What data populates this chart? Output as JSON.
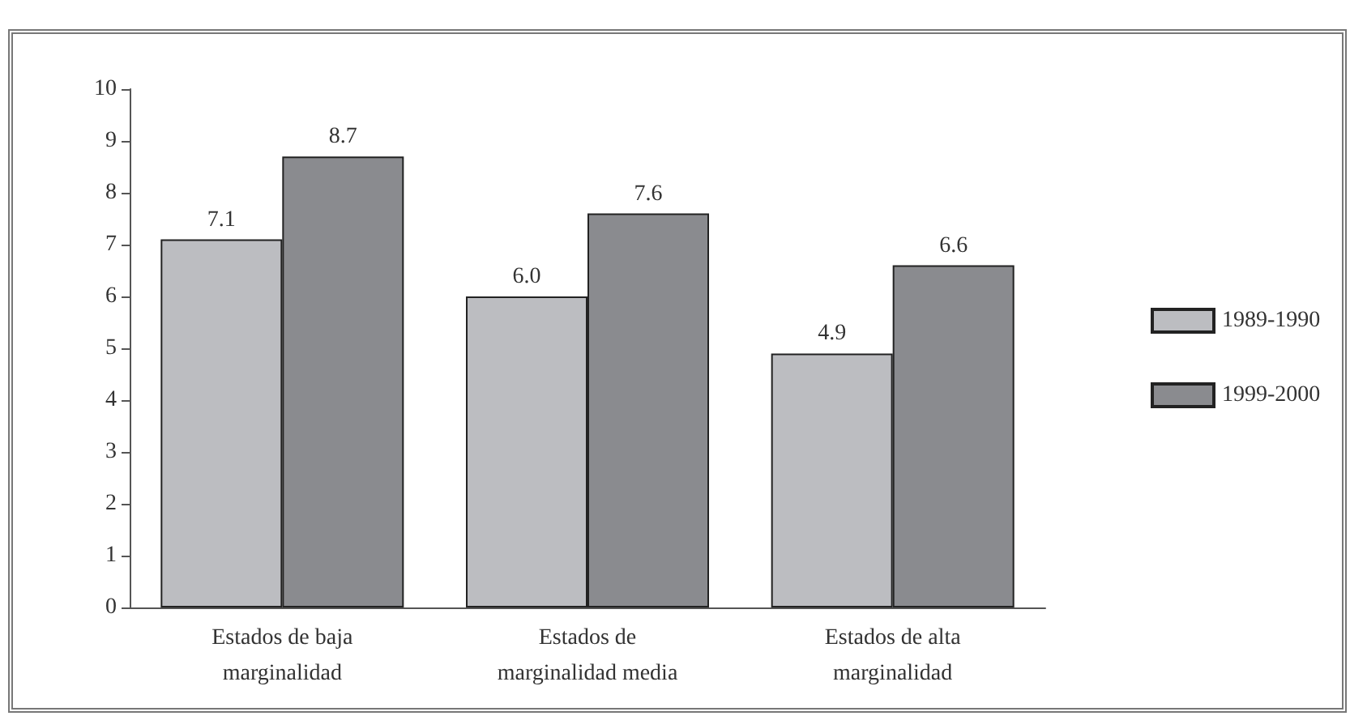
{
  "chart_data": {
    "type": "bar",
    "categories": [
      "Estados de baja\nmarginalidad",
      "Estados de\nmarginalidad media",
      "Estados de alta\nmarginalidad"
    ],
    "series": [
      {
        "name": "1989-1990",
        "color": "#bcbdc1",
        "values": [
          7.1,
          6.0,
          4.9
        ],
        "value_labels": [
          "7.1",
          "6.0",
          "4.9"
        ]
      },
      {
        "name": "1999-2000",
        "color": "#8a8b8f",
        "values": [
          8.7,
          7.6,
          6.6
        ],
        "value_labels": [
          "8.7",
          "7.6",
          "6.6"
        ]
      }
    ],
    "ylim": [
      0,
      10
    ],
    "yticks": [
      0,
      1,
      2,
      3,
      4,
      5,
      6,
      7,
      8,
      9,
      10
    ],
    "grid": false,
    "legend": "right"
  }
}
